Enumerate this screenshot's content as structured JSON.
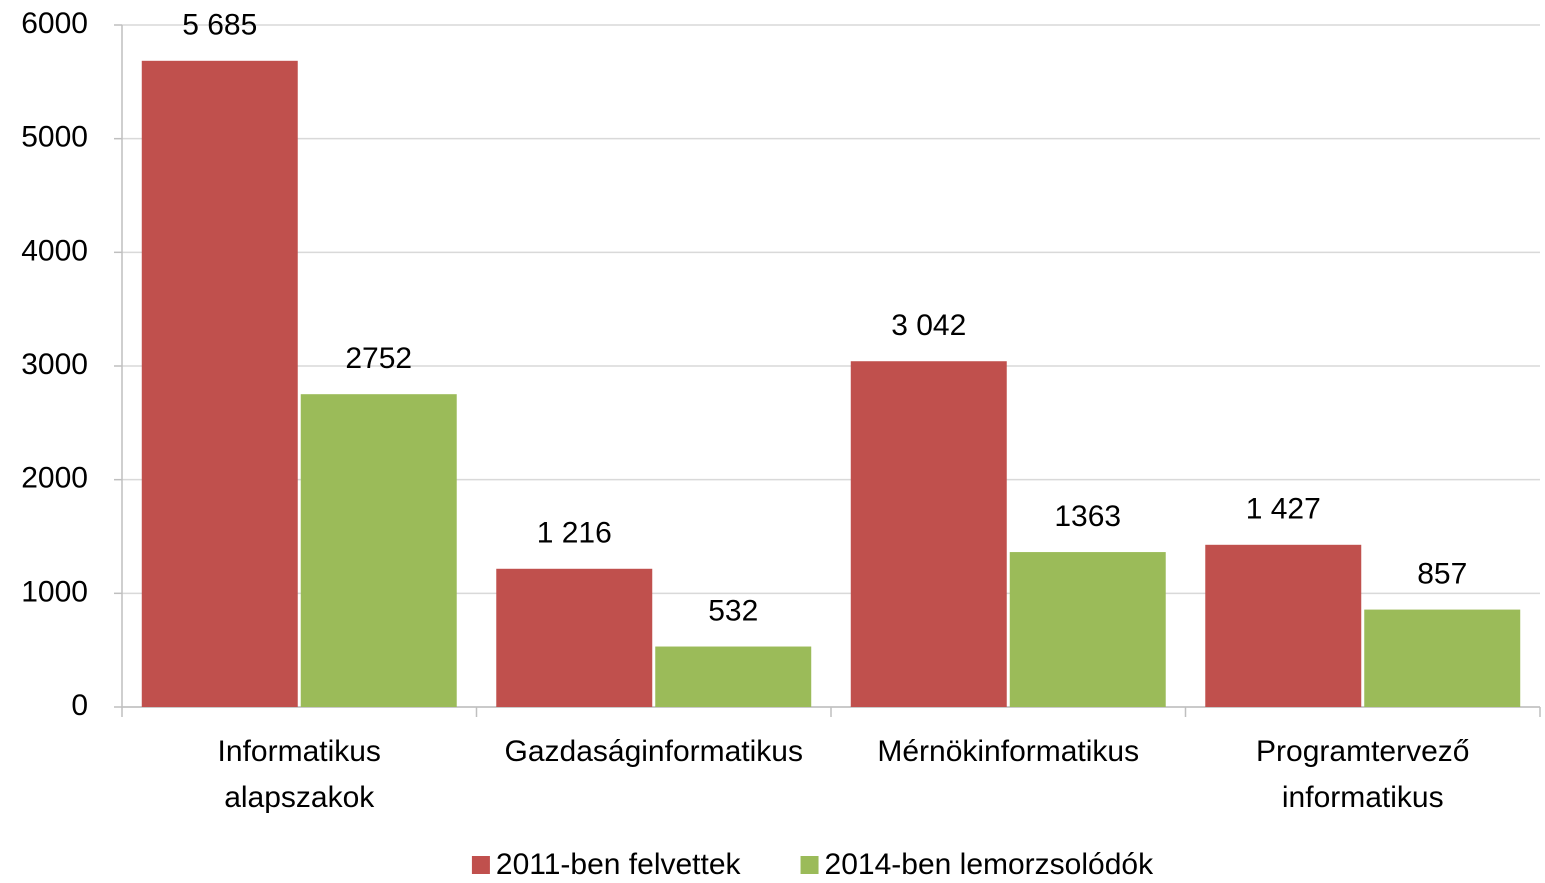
{
  "chart_data": {
    "type": "bar",
    "categories": [
      [
        "Informatikus",
        "alapszakok"
      ],
      [
        "Gazdaságinformatikus"
      ],
      [
        "Mérnökinformatikus"
      ],
      [
        "Programtervező",
        "informatikus"
      ]
    ],
    "series": [
      {
        "name": "2011-ben felvettek",
        "color": "#c0504d",
        "values": [
          5685,
          1216,
          3042,
          1427
        ],
        "value_labels": [
          "5 685",
          "1 216",
          "3 042",
          "1 427"
        ]
      },
      {
        "name": "2014-ben lemorzsolódók",
        "color": "#9bbb59",
        "values": [
          2752,
          532,
          1363,
          857
        ],
        "value_labels": [
          "2752",
          "532",
          "1363",
          "857"
        ]
      }
    ],
    "ylim": [
      0,
      6000
    ],
    "yticks": [
      0,
      1000,
      2000,
      3000,
      4000,
      5000,
      6000
    ],
    "grid": true,
    "legend": "bottom"
  }
}
